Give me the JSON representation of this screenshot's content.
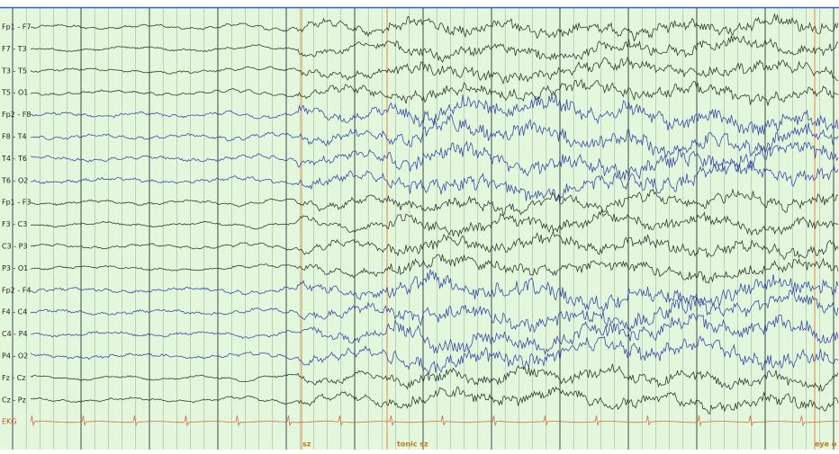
{
  "montage": {
    "channels": [
      "Fp1 - F7",
      "F7 - T3",
      "T3 - T5",
      "T5 - O1",
      "Fp2 - F8",
      "F8 - T4",
      "T4 - T6",
      "T6 - O2",
      "Fp1 - F3",
      "F3 - C3",
      "C3 - P3",
      "P3 - O1",
      "Fp2 - F4",
      "F4 - C4",
      "C4 - P4",
      "P4 - O2",
      "Fz - Cz",
      "Cz - Pz",
      "EKG"
    ]
  },
  "annotations": [
    {
      "label": "sz"
    },
    {
      "label": "tonic sz"
    },
    {
      "label": "eye o"
    }
  ]
}
